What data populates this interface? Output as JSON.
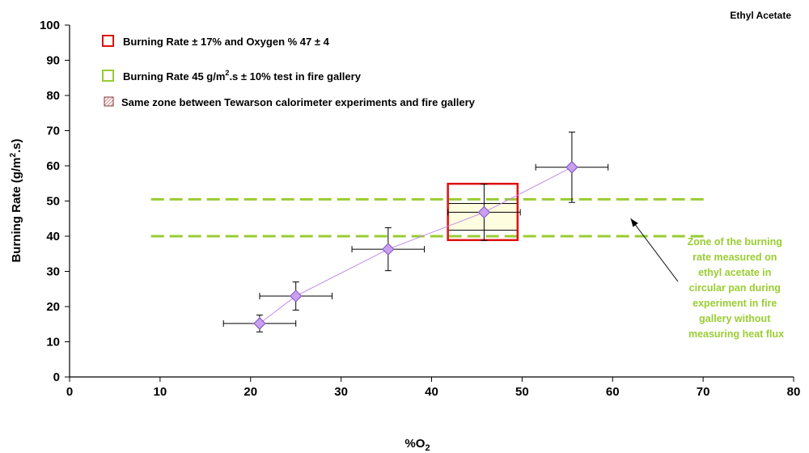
{
  "chart_data": {
    "type": "scatter",
    "corner_label": "Ethyl Acetate",
    "xlabel_main": "%O",
    "xlabel_sub": "2",
    "ylabel_parts": [
      "Burning Rate (g/m",
      "2",
      ".s)"
    ],
    "xlim": [
      0,
      80
    ],
    "ylim": [
      0,
      100
    ],
    "x_ticks": [
      0,
      10,
      20,
      30,
      40,
      50,
      60,
      70,
      80
    ],
    "y_ticks": [
      0,
      10,
      20,
      30,
      40,
      50,
      60,
      70,
      80,
      90,
      100
    ],
    "grid": false,
    "legend_position": "top-left",
    "colors": {
      "marker_fill": "#c9a0f0",
      "marker_stroke": "#7a4fb8",
      "trend_line": "#c08ae8",
      "red_zone": "#e01010",
      "green_zone": "#99cc33",
      "shared_zone_fill": "#fffde0",
      "note_text": "#9acd32"
    },
    "points": [
      {
        "x": 21.0,
        "y": 15.2,
        "xerr_low": 17.0,
        "xerr_high": 25.0,
        "yerr_low": 12.8,
        "yerr_high": 17.6
      },
      {
        "x": 25.0,
        "y": 23.0,
        "xerr_low": 21.0,
        "xerr_high": 29.0,
        "yerr_low": 19.0,
        "yerr_high": 27.0
      },
      {
        "x": 35.2,
        "y": 36.3,
        "xerr_low": 31.2,
        "xerr_high": 39.2,
        "yerr_low": 30.2,
        "yerr_high": 42.4
      },
      {
        "x": 45.8,
        "y": 46.8,
        "xerr_low": 41.8,
        "xerr_high": 49.8,
        "yerr_low": 38.8,
        "yerr_high": 54.8
      },
      {
        "x": 55.5,
        "y": 59.6,
        "xerr_low": 51.5,
        "xerr_high": 59.5,
        "yerr_low": 49.6,
        "yerr_high": 69.6
      }
    ],
    "red_zone": {
      "x": [
        41.8,
        49.5
      ],
      "y": [
        38.9,
        54.9
      ]
    },
    "green_band": {
      "x": [
        9.0,
        70.5
      ],
      "y": [
        40.0,
        50.5
      ]
    },
    "shared_zone": {
      "x": [
        41.8,
        49.5
      ],
      "y": [
        41.7,
        49.3
      ]
    },
    "legend": [
      {
        "kind": "red",
        "text": "Burning Rate ± 17% and Oxygen % 47 ± 4"
      },
      {
        "kind": "green",
        "text_parts": [
          "Burning Rate 45 g/m",
          "2",
          ".s ± 10% test in fire gallery"
        ]
      },
      {
        "kind": "hatched",
        "text": "Same zone between Tewarson calorimeter experiments and fire gallery"
      }
    ],
    "annotation": {
      "lines": [
        "Zone of the burning",
        "rate measured on",
        "ethyl acetate in",
        "circular pan during",
        "experiment in fire",
        "gallery without",
        "measuring heat flux"
      ],
      "arrow_to": {
        "x": 62.0,
        "y": 45.0
      }
    }
  }
}
